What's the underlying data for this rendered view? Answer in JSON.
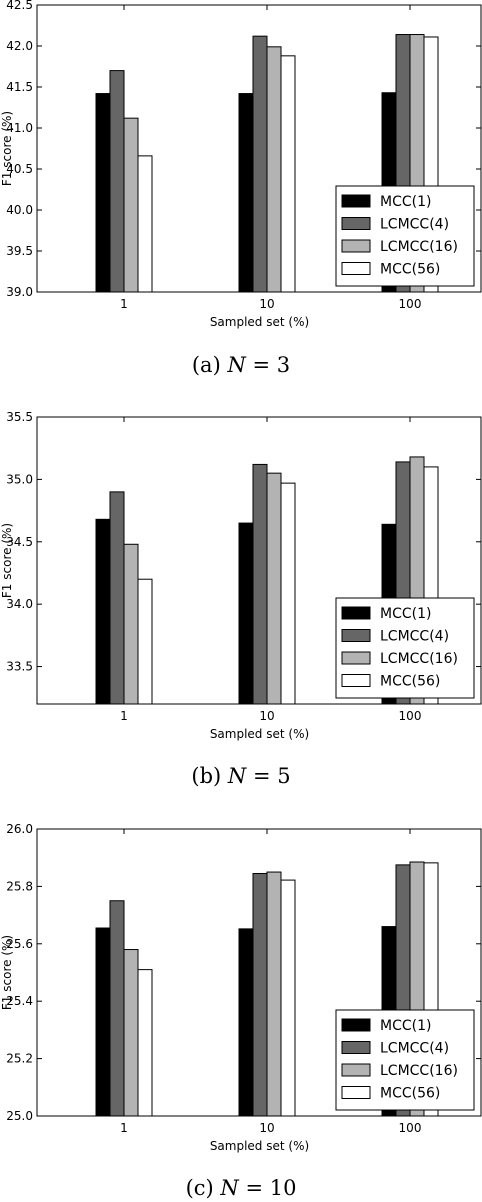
{
  "chart_data": [
    {
      "type": "bar",
      "caption_prefix": "(a)",
      "caption_var": "N",
      "caption_rest": " = 3",
      "xlabel": "Sampled set (%)",
      "ylabel": "F1 score (%)",
      "categories": [
        "1",
        "10",
        "100"
      ],
      "ylim": [
        39.0,
        42.5
      ],
      "yticks": [
        "39.0",
        "39.5",
        "40.0",
        "40.5",
        "41.0",
        "41.5",
        "42.0",
        "42.5"
      ],
      "legend_position": "lower-right",
      "series": [
        {
          "name": "MCC(1)",
          "color": "#000000",
          "values": [
            41.42,
            41.42,
            41.43
          ]
        },
        {
          "name": "LCMCC(4)",
          "color": "#666666",
          "values": [
            41.7,
            42.12,
            42.14
          ]
        },
        {
          "name": "LCMCC(16)",
          "color": "#b3b3b3",
          "values": [
            41.12,
            41.99,
            42.14
          ]
        },
        {
          "name": "MCC(56)",
          "color": "#ffffff",
          "values": [
            40.66,
            41.88,
            42.11
          ]
        }
      ]
    },
    {
      "type": "bar",
      "caption_prefix": "(b)",
      "caption_var": "N",
      "caption_rest": " = 5",
      "xlabel": "Sampled set (%)",
      "ylabel": "F1 score (%)",
      "categories": [
        "1",
        "10",
        "100"
      ],
      "ylim": [
        33.2,
        35.5
      ],
      "yticks": [
        "33.5",
        "34.0",
        "34.5",
        "35.0",
        "35.5"
      ],
      "legend_position": "lower-right",
      "series": [
        {
          "name": "MCC(1)",
          "color": "#000000",
          "values": [
            34.68,
            34.65,
            34.64
          ]
        },
        {
          "name": "LCMCC(4)",
          "color": "#666666",
          "values": [
            34.9,
            35.12,
            35.14
          ]
        },
        {
          "name": "LCMCC(16)",
          "color": "#b3b3b3",
          "values": [
            34.48,
            35.05,
            35.18
          ]
        },
        {
          "name": "MCC(56)",
          "color": "#ffffff",
          "values": [
            34.2,
            34.97,
            35.1
          ]
        }
      ]
    },
    {
      "type": "bar",
      "caption_prefix": "(c)",
      "caption_var": "N",
      "caption_rest": " = 10",
      "xlabel": "Sampled set (%)",
      "ylabel": "F1 score (%)",
      "categories": [
        "1",
        "10",
        "100"
      ],
      "ylim": [
        25.0,
        26.0
      ],
      "yticks": [
        "25.0",
        "25.2",
        "25.4",
        "25.6",
        "25.8",
        "26.0"
      ],
      "legend_position": "lower-right",
      "series": [
        {
          "name": "MCC(1)",
          "color": "#000000",
          "values": [
            25.655,
            25.652,
            25.66
          ]
        },
        {
          "name": "LCMCC(4)",
          "color": "#666666",
          "values": [
            25.75,
            25.845,
            25.875
          ]
        },
        {
          "name": "LCMCC(16)",
          "color": "#b3b3b3",
          "values": [
            25.58,
            25.85,
            25.885
          ]
        },
        {
          "name": "MCC(56)",
          "color": "#ffffff",
          "values": [
            25.51,
            25.822,
            25.882
          ]
        }
      ]
    }
  ]
}
